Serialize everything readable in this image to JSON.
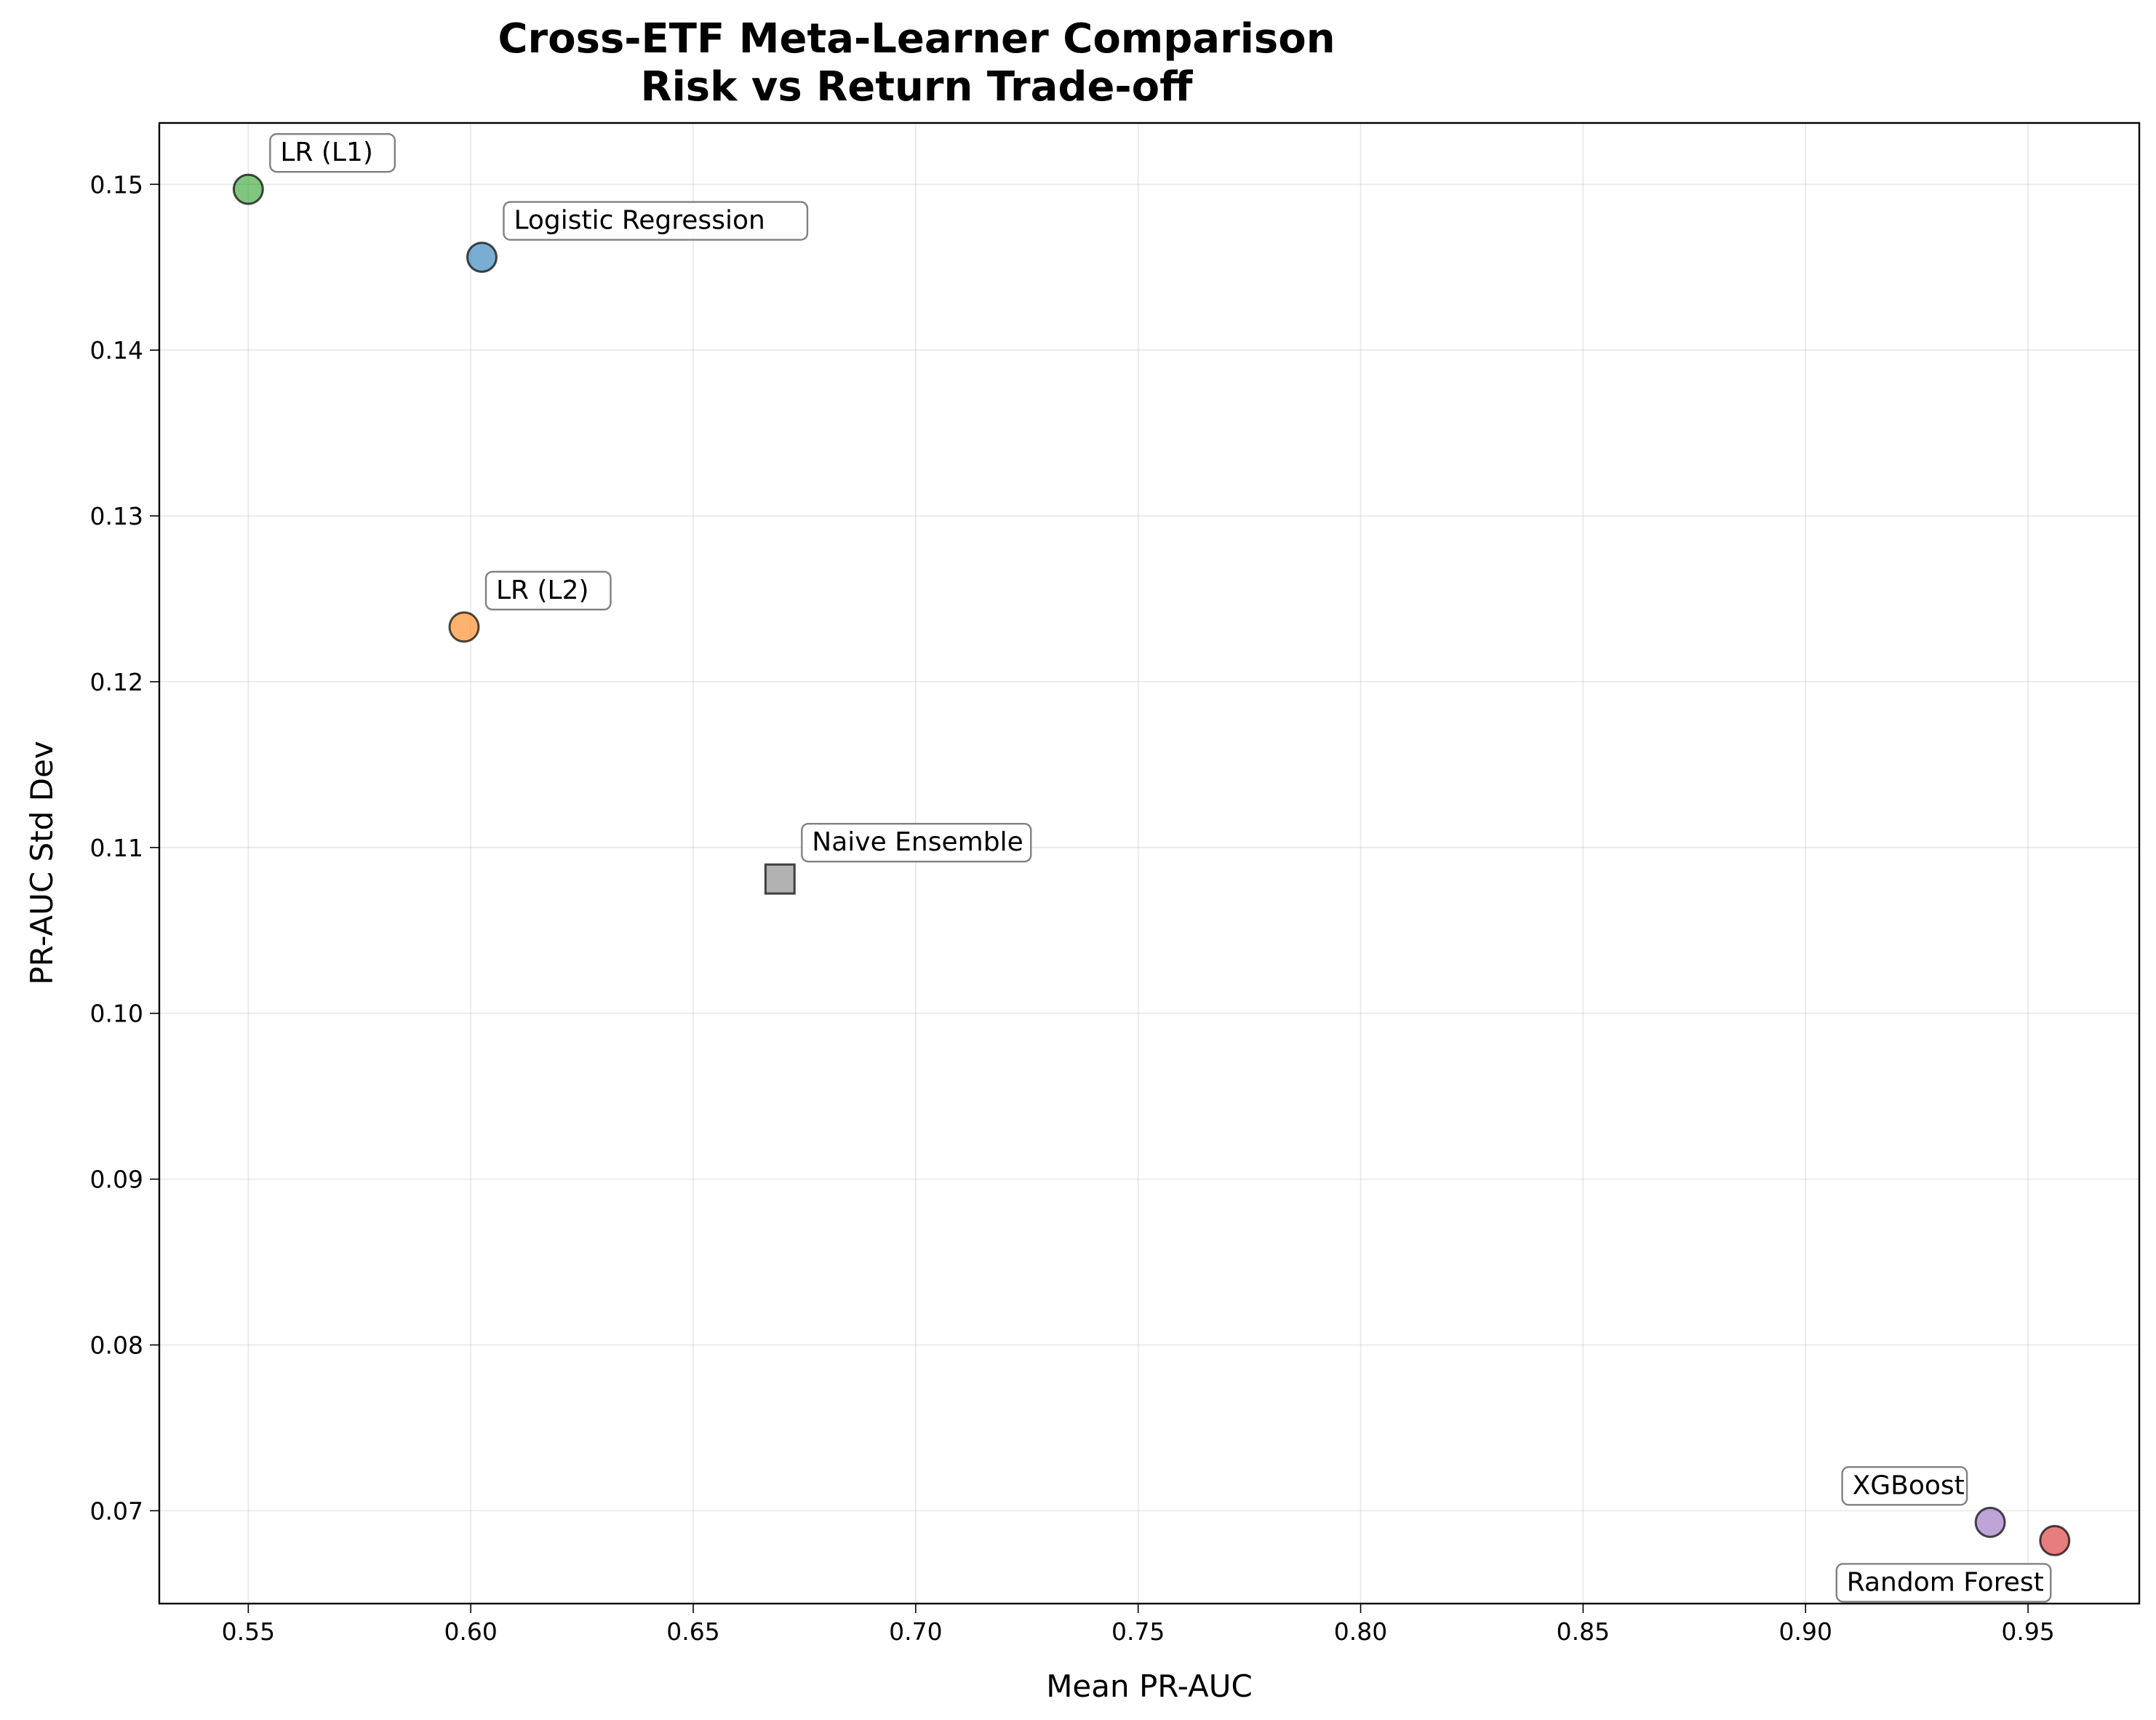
{
  "chart_data": {
    "type": "scatter",
    "title": "Cross-ETF Meta-Learner Comparison",
    "subtitle": "Risk vs Return Trade-off",
    "xlabel": "Mean PR-AUC",
    "ylabel": "PR-AUC Std Dev",
    "xlim": [
      0.53,
      0.975
    ],
    "ylim": [
      0.0644,
      0.1537
    ],
    "xticks": [
      "0.55",
      "0.60",
      "0.65",
      "0.70",
      "0.75",
      "0.80",
      "0.85",
      "0.90",
      "0.95"
    ],
    "yticks": [
      "0.07",
      "0.08",
      "0.09",
      "0.10",
      "0.11",
      "0.12",
      "0.13",
      "0.14",
      "0.15"
    ],
    "grid": true,
    "points": [
      {
        "label": "Logistic Regression",
        "x": 0.6025,
        "y": 0.1456,
        "marker": "circle",
        "color": "#1f77b4",
        "label_position": "upper-right"
      },
      {
        "label": "LR (L2)",
        "x": 0.5985,
        "y": 0.1233,
        "marker": "circle",
        "color": "#ff7f0e",
        "label_position": "upper-right"
      },
      {
        "label": "LR (L1)",
        "x": 0.55,
        "y": 0.1497,
        "marker": "circle",
        "color": "#2ca02c",
        "label_position": "upper-right"
      },
      {
        "label": "Random Forest",
        "x": 0.956,
        "y": 0.0682,
        "marker": "circle",
        "color": "#d62728",
        "label_position": "lower-left"
      },
      {
        "label": "XGBoost",
        "x": 0.9415,
        "y": 0.0693,
        "marker": "circle",
        "color": "#9467bd",
        "label_position": "upper-left"
      },
      {
        "label": "Naive Ensemble",
        "x": 0.6695,
        "y": 0.1081,
        "marker": "square",
        "color": "#7f7f7f",
        "label_position": "upper-right"
      }
    ]
  }
}
